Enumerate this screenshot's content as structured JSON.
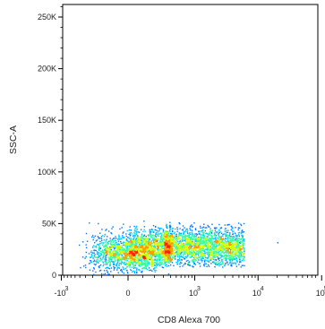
{
  "chart_data": {
    "type": "scatter",
    "style": "density dot plot (flow cytometry)",
    "xlabel": "CD8 Alexa 700",
    "ylabel": "SSC-A",
    "x_scale": "biexponential (logicle)",
    "y_scale": "linear",
    "ylim": [
      0,
      262144
    ],
    "y_ticks": [
      {
        "label": "0",
        "value": 0
      },
      {
        "label": "50K",
        "value": 50000
      },
      {
        "label": "100K",
        "value": 100000
      },
      {
        "label": "150K",
        "value": 150000
      },
      {
        "label": "200K",
        "value": 200000
      },
      {
        "label": "250K",
        "value": 250000
      }
    ],
    "x_ticks": [
      {
        "base": "-10",
        "exp": "3",
        "value": -1000
      },
      {
        "base": "0",
        "exp": "",
        "value": 0
      },
      {
        "base": "10",
        "exp": "3",
        "value": 1000
      },
      {
        "base": "10",
        "exp": "4",
        "value": 10000
      },
      {
        "base": "10",
        "exp": "5",
        "value": 100000
      }
    ],
    "populations": [
      {
        "name": "dense core",
        "x_center": 0,
        "x_spread": 150,
        "y_center": 22000,
        "y_spread": 9000,
        "share": 0.35
      },
      {
        "name": "CD8 low-positive tail",
        "x_range": [
          0,
          6000
        ],
        "y_range": [
          8000,
          52000
        ],
        "share": 0.65
      }
    ],
    "outliers": [
      {
        "x": 20000,
        "y": 32000
      }
    ],
    "density_colors": [
      "#0000cc",
      "#0077ff",
      "#00ccff",
      "#33ff99",
      "#ccff00",
      "#ff9900",
      "#ff2200"
    ],
    "grid": false,
    "legend": "none"
  }
}
